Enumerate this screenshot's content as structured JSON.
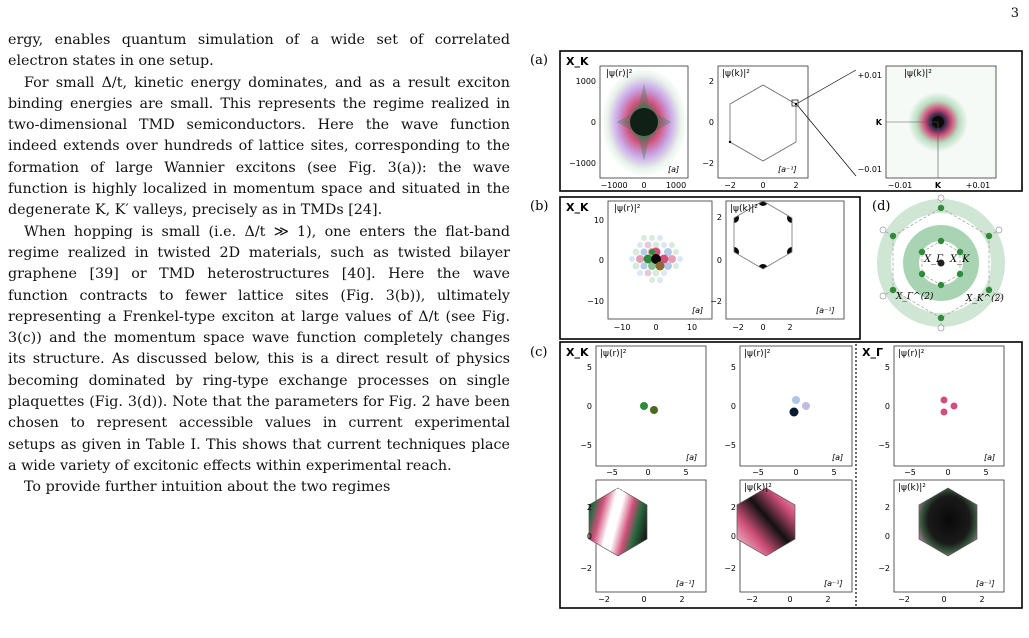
{
  "page_number": "3",
  "paragraphs": [
    {
      "indent": false,
      "text": "ergy, enables quantum simulation of a wide set of correlated electron states in one setup."
    },
    {
      "indent": true,
      "text": "For small Δ/t, kinetic energy dominates, and as a result exciton binding energies are small. This represents the regime realized in two-dimensional TMD semiconductors. Here the wave function indeed extends over hundreds of lattice sites, corresponding to the formation of large Wannier excitons (see Fig. 3(a)): the wave function is highly localized in momentum space and situated in the degenerate K, K′ valleys, precisely as in TMDs [24]."
    },
    {
      "indent": true,
      "text": "When hopping is small (i.e. Δ/t ≫ 1), one enters the flat-band regime realized in twisted 2D materials, such as twisted bilayer graphene [39] or TMD heterostructures [40]. Here the wave function contracts to fewer lattice sites (Fig. 3(b)), ultimately representing a Frenkel-type exciton at large values of Δ/t (see Fig. 3(c)) and the momentum space wave function completely changes its structure. As discussed below, this is a direct result of physics becoming dominated by ring-type exchange processes on single plaquettes (Fig. 3(d)). Note that the parameters for Fig. 2 have been chosen to represent accessible values in current experimental setups as given in Table I. This shows that current techniques place a wide variety of excitonic effects within experimental reach."
    },
    {
      "indent": true,
      "text": "To provide further intuition about the two regimes"
    }
  ],
  "figure": {
    "panel_a": {
      "label": "(a)",
      "state": "X_K",
      "plot1": {
        "title": "|ψ(r)|²",
        "unit": "[a]",
        "xticks": [
          "−1000",
          "0",
          "1000"
        ],
        "yticks": [
          "1000",
          "0",
          "−1000"
        ]
      },
      "plot2": {
        "title": "|ψ(k)|²",
        "unit": "[a⁻¹]",
        "xticks": [
          "−2",
          "0",
          "2"
        ],
        "yticks": [
          "2",
          "0",
          "−2"
        ]
      },
      "plot3": {
        "title": "|ψ(k)|²",
        "xticks": [
          "−0.01",
          "K",
          "+0.01"
        ],
        "yticks": [
          "+0.01",
          "K",
          "−0.01"
        ]
      }
    },
    "panel_b": {
      "label": "(b)",
      "state": "X_K",
      "plot1": {
        "title": "|ψ(r)|²",
        "unit": "[a]",
        "xticks": [
          "−10",
          "0",
          "10"
        ],
        "yticks": [
          "10",
          "0",
          "−10"
        ]
      },
      "plot2": {
        "title": "|ψ(k)|²",
        "unit": "[a⁻¹]",
        "xticks": [
          "−2",
          "0",
          "2"
        ],
        "yticks": [
          "2",
          "0",
          "−2"
        ]
      }
    },
    "panel_d": {
      "label": "(d)",
      "labels": [
        "X_Γ",
        "X_K",
        "X_Γ^(2)",
        "X_K^(2)"
      ]
    },
    "panel_c": {
      "label": "(c)",
      "state_left": "X_K",
      "state_right": "X_Γ",
      "real_title": "|ψ(r)|²",
      "mom_title": "|ψ(k)|²",
      "real_unit": "[a]",
      "mom_unit": "[a⁻¹]",
      "real_xticks": [
        "−5",
        "0",
        "5"
      ],
      "real_yticks": [
        "5",
        "0",
        "−5"
      ],
      "mom_xticks": [
        "−2",
        "0",
        "2"
      ],
      "mom_yticks": [
        "2",
        "0",
        "−2"
      ]
    },
    "colors": {
      "green": "#2e8b3a",
      "pink": "#d0507a",
      "light_green": "#b8dcc0",
      "blue": "#7aa0d8"
    }
  }
}
